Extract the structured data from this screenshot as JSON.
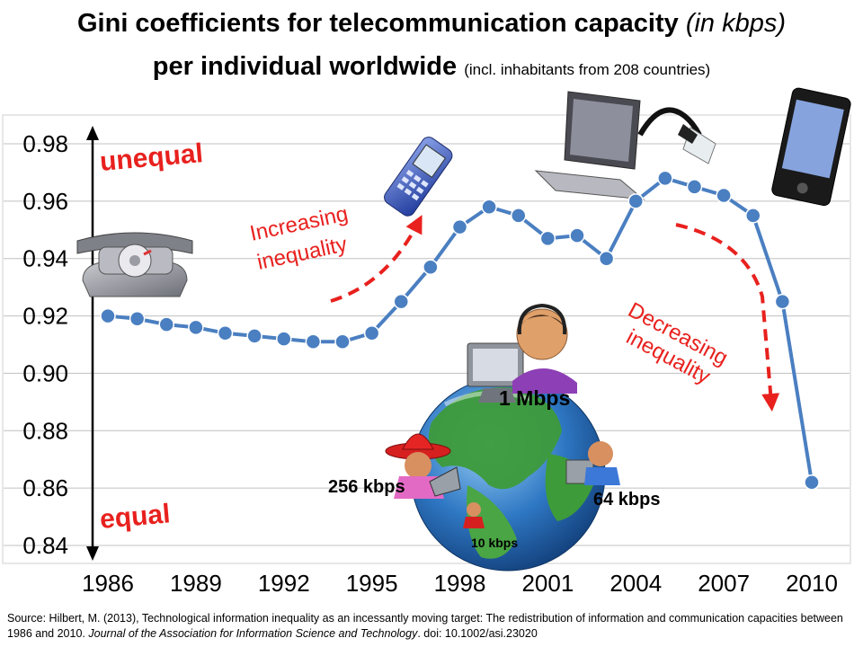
{
  "title": {
    "line1_main": "Gini coefficients for telecommunication capacity ",
    "line1_italic": "(in kbps)",
    "line2_main": "per individual worldwide ",
    "line2_small": "(incl. inhabitants from 208 countries)"
  },
  "annotations": {
    "unequal": "unequal",
    "equal": "equal",
    "increasing_line1": "Increasing",
    "increasing_line2": "inequality",
    "decreasing_line1": "Decreasing",
    "decreasing_line2": "inequality",
    "speed_1mbps": "1 Mbps",
    "speed_256kbps": "256 kbps",
    "speed_64kbps": "64 kbps",
    "speed_10kbps": "10 kbps"
  },
  "icons": [
    "rotary-telephone-icon",
    "mobile-phone-icon",
    "laptop-icon",
    "ethernet-cable-icon",
    "smartphone-icon",
    "globe-icon",
    "person-headset-icon",
    "person-sombrero-icon",
    "person-computer-icon",
    "person-small-icon"
  ],
  "colors": {
    "series": "#4a7fc1",
    "annotation_red": "#e8211e",
    "axis_arrow": "#000000",
    "grid": "#c0c0c0"
  },
  "source": {
    "prefix": "Source:  Hilbert, M. (2013), Technological information inequality as an incessantly moving target: The redistribution of information and communication  capacities between 1986 and 2010. ",
    "journal": "Journal of the Association for Information Science and Technology",
    "suffix": ". doi: 10.1002/asi.23020"
  },
  "chart_data": {
    "type": "line",
    "title": "Gini coefficients for telecommunication capacity (in kbps) per individual worldwide",
    "xlabel": "",
    "ylabel": "",
    "ylim": [
      0.84,
      0.98
    ],
    "xlim": [
      1986,
      2010
    ],
    "grid": true,
    "x_ticks": [
      1986,
      1989,
      1992,
      1995,
      1998,
      2001,
      2004,
      2007,
      2010
    ],
    "y_ticks": [
      "0.84",
      "0.86",
      "0.88",
      "0.90",
      "0.92",
      "0.94",
      "0.96",
      "0.98"
    ],
    "series": [
      {
        "x": [
          1986,
          1987,
          1988,
          1989,
          1990,
          1991,
          1992,
          1993,
          1994,
          1995,
          1996,
          1997,
          1998,
          1999,
          2000,
          2001,
          2002,
          2003,
          2004,
          2005,
          2006,
          2007,
          2008,
          2009,
          2010
        ],
        "values": [
          0.92,
          0.919,
          0.917,
          0.916,
          0.914,
          0.913,
          0.912,
          0.911,
          0.911,
          0.914,
          0.925,
          0.937,
          0.951,
          0.958,
          0.955,
          0.947,
          0.948,
          0.94,
          0.96,
          0.968,
          0.965,
          0.962,
          0.955,
          0.925,
          0.862
        ]
      }
    ]
  }
}
